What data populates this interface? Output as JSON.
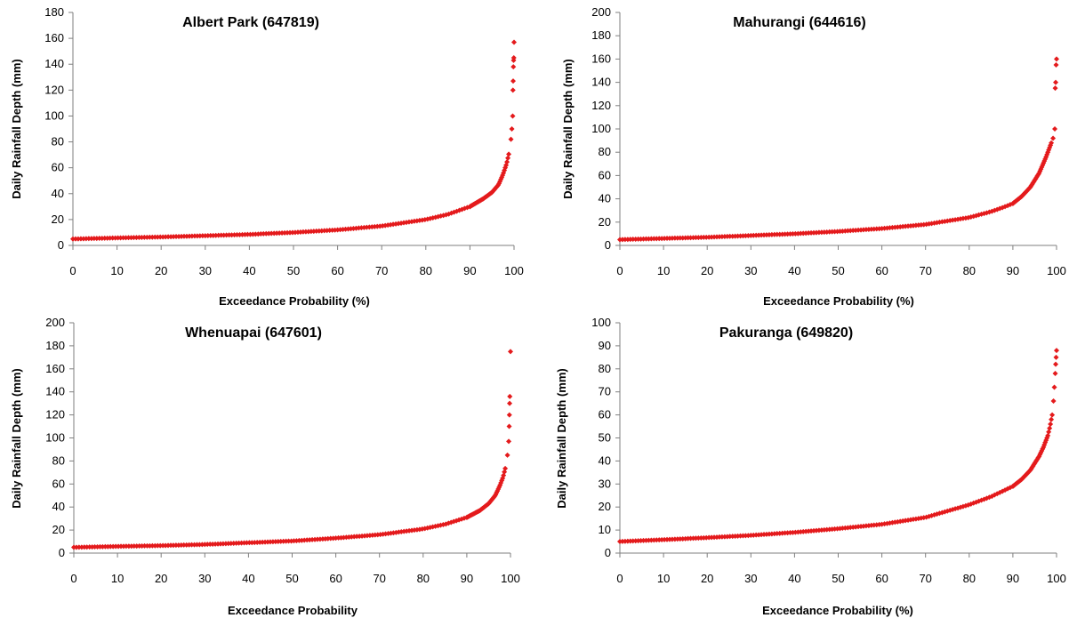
{
  "chart_data": [
    {
      "type": "scatter",
      "title": "Albert Park (647819)",
      "xlabel": "Exceedance Probability (%)",
      "ylabel": "Daily Rainfall Depth (mm)",
      "xlim": [
        0,
        100
      ],
      "ylim": [
        0,
        180
      ],
      "xticks": [
        0,
        10,
        20,
        30,
        40,
        50,
        60,
        70,
        80,
        90,
        100
      ],
      "yticks": [
        0,
        20,
        40,
        60,
        80,
        100,
        120,
        140,
        160,
        180
      ],
      "grid": false,
      "marker_color": "#e41a1c",
      "curve_points": [
        [
          0,
          5
        ],
        [
          10,
          5.8
        ],
        [
          20,
          6.5
        ],
        [
          30,
          7.5
        ],
        [
          40,
          8.5
        ],
        [
          50,
          10
        ],
        [
          60,
          12
        ],
        [
          70,
          15
        ],
        [
          80,
          20
        ],
        [
          85,
          24
        ],
        [
          90,
          30
        ],
        [
          93,
          36
        ],
        [
          95,
          41
        ],
        [
          96.5,
          47
        ],
        [
          97.5,
          55
        ],
        [
          98.3,
          63
        ],
        [
          98.9,
          72
        ],
        [
          99.3,
          82
        ],
        [
          99.5,
          90
        ],
        [
          99.7,
          100
        ],
        [
          99.75,
          120
        ],
        [
          99.8,
          127
        ],
        [
          99.85,
          138
        ],
        [
          99.9,
          143
        ],
        [
          99.95,
          145
        ],
        [
          100,
          157
        ]
      ]
    },
    {
      "type": "scatter",
      "title": "Mahurangi (644616)",
      "xlabel": "Exceedance Probability (%)",
      "ylabel": "Daily Rainfall Depth (mm)",
      "xlim": [
        0,
        100
      ],
      "ylim": [
        0,
        200
      ],
      "xticks": [
        0,
        10,
        20,
        30,
        40,
        50,
        60,
        70,
        80,
        90,
        100
      ],
      "yticks": [
        0,
        20,
        40,
        60,
        80,
        100,
        120,
        140,
        160,
        180,
        200
      ],
      "grid": false,
      "marker_color": "#e41a1c",
      "curve_points": [
        [
          0,
          5
        ],
        [
          10,
          6
        ],
        [
          20,
          7
        ],
        [
          30,
          8.5
        ],
        [
          40,
          10
        ],
        [
          50,
          12
        ],
        [
          60,
          14.5
        ],
        [
          70,
          18
        ],
        [
          80,
          24
        ],
        [
          85,
          29
        ],
        [
          88,
          33
        ],
        [
          90,
          36
        ],
        [
          92,
          42
        ],
        [
          94,
          50
        ],
        [
          96,
          62
        ],
        [
          97.5,
          75
        ],
        [
          98.5,
          85
        ],
        [
          99.2,
          92
        ],
        [
          99.6,
          100
        ],
        [
          99.7,
          135
        ],
        [
          99.8,
          140
        ],
        [
          99.9,
          155
        ],
        [
          100,
          160
        ]
      ]
    },
    {
      "type": "scatter",
      "title": "Whenuapai (647601)",
      "xlabel": "Exceedance Probability",
      "ylabel": "Daily Rainfall Depth (mm)",
      "xlim": [
        0,
        100
      ],
      "ylim": [
        0,
        200
      ],
      "xticks": [
        0,
        10,
        20,
        30,
        40,
        50,
        60,
        70,
        80,
        90,
        100
      ],
      "yticks": [
        0,
        20,
        40,
        60,
        80,
        100,
        120,
        140,
        160,
        180,
        200
      ],
      "grid": false,
      "marker_color": "#e41a1c",
      "curve_points": [
        [
          0,
          5
        ],
        [
          10,
          5.8
        ],
        [
          20,
          6.5
        ],
        [
          30,
          7.5
        ],
        [
          40,
          9
        ],
        [
          50,
          10.5
        ],
        [
          60,
          13
        ],
        [
          70,
          16
        ],
        [
          80,
          21
        ],
        [
          85,
          25
        ],
        [
          90,
          31
        ],
        [
          93,
          37
        ],
        [
          95,
          43
        ],
        [
          96.5,
          50
        ],
        [
          97.5,
          58
        ],
        [
          98.3,
          66
        ],
        [
          98.9,
          75
        ],
        [
          99.3,
          85
        ],
        [
          99.6,
          97
        ],
        [
          99.7,
          110
        ],
        [
          99.75,
          120
        ],
        [
          99.8,
          130
        ],
        [
          99.85,
          136
        ],
        [
          100,
          175
        ]
      ]
    },
    {
      "type": "scatter",
      "title": "Pakuranga (649820)",
      "xlabel": "Exceedance Probability (%)",
      "ylabel": "Daily Rainfall Depth (mm)",
      "xlim": [
        0,
        100
      ],
      "ylim": [
        0,
        100
      ],
      "xticks": [
        0,
        10,
        20,
        30,
        40,
        50,
        60,
        70,
        80,
        90,
        100
      ],
      "yticks": [
        0,
        10,
        20,
        30,
        40,
        50,
        60,
        70,
        80,
        90,
        100
      ],
      "grid": false,
      "marker_color": "#e41a1c",
      "curve_points": [
        [
          0,
          5
        ],
        [
          10,
          5.8
        ],
        [
          20,
          6.7
        ],
        [
          30,
          7.7
        ],
        [
          40,
          9
        ],
        [
          50,
          10.6
        ],
        [
          60,
          12.5
        ],
        [
          70,
          15.5
        ],
        [
          80,
          21
        ],
        [
          85,
          24.5
        ],
        [
          90,
          29
        ],
        [
          92,
          32
        ],
        [
          94,
          36
        ],
        [
          96,
          42
        ],
        [
          97,
          46
        ],
        [
          98,
          51
        ],
        [
          98.5,
          55
        ],
        [
          99,
          60
        ],
        [
          99.3,
          66
        ],
        [
          99.5,
          72
        ],
        [
          99.7,
          78
        ],
        [
          99.8,
          82
        ],
        [
          99.9,
          85
        ],
        [
          100,
          88
        ]
      ]
    }
  ]
}
